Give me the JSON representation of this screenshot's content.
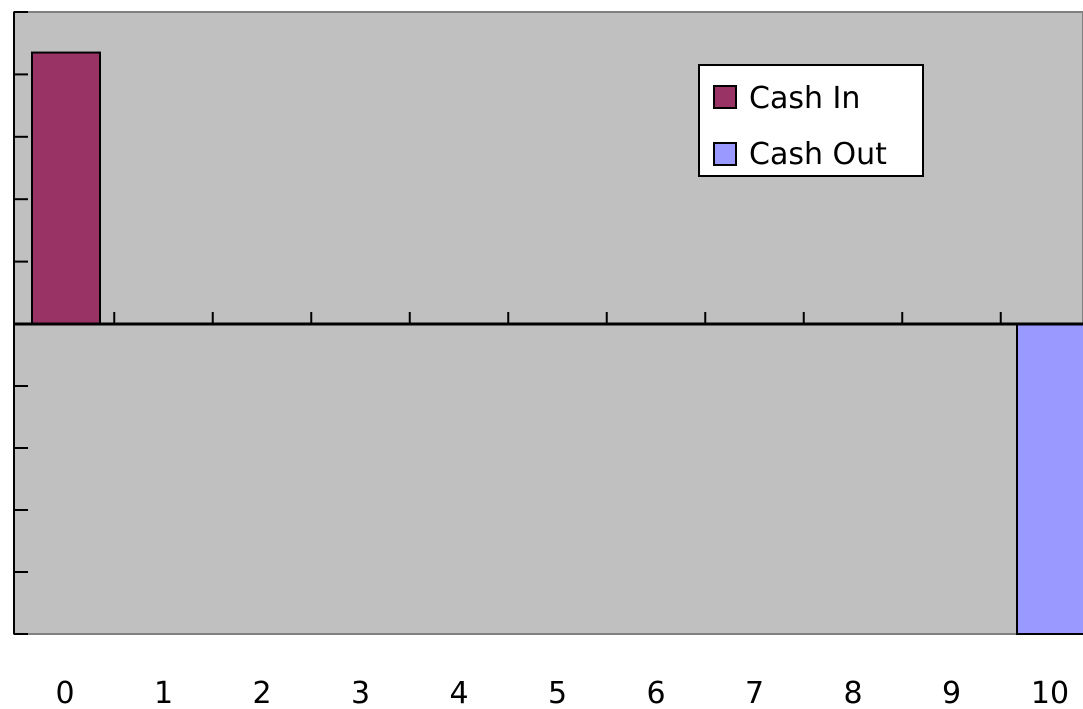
{
  "chart_data": {
    "type": "bar",
    "categories": [
      "0",
      "1",
      "2",
      "3",
      "4",
      "5",
      "6",
      "7",
      "8",
      "9",
      "10"
    ],
    "series": [
      {
        "name": "Cash In",
        "color": "#993366",
        "values": [
          4.35,
          0,
          0,
          0,
          0,
          0,
          0,
          0,
          0,
          0,
          0
        ]
      },
      {
        "name": "Cash Out",
        "color": "#9999ff",
        "values": [
          0,
          0,
          0,
          0,
          0,
          0,
          0,
          0,
          0,
          0,
          -5
        ]
      }
    ],
    "ylim": [
      -5,
      5
    ],
    "y_tick_step": 1,
    "y_tick_labels_shown": false,
    "grid": false,
    "legend_position": "top-right",
    "plot_background": "#c0c0c0",
    "title": "",
    "xlabel": "",
    "ylabel": ""
  }
}
